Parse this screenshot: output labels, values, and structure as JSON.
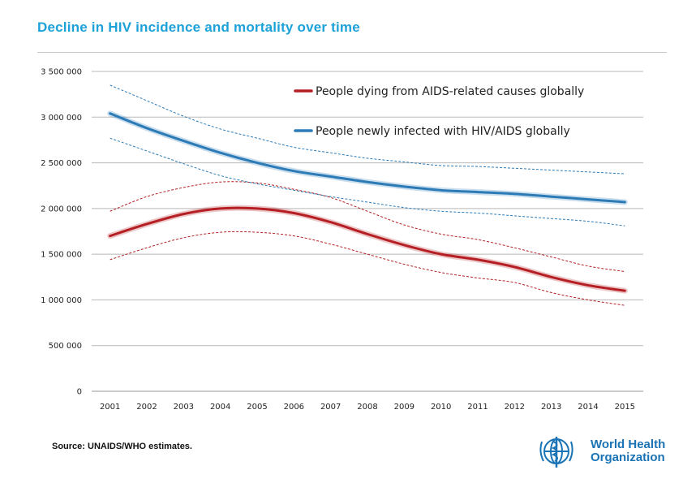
{
  "title_parts": {
    "pre": "Decline in ",
    "bold": "HIV",
    "post": " incidence and mortality over time"
  },
  "source": "Source: UNAIDS/WHO estimates.",
  "logo": {
    "line1": "World Health",
    "line2": "Organization",
    "icon": "who-emblem-icon"
  },
  "colors": {
    "deaths": "#b51f24",
    "infections": "#2c7bb6",
    "title": "#1ca1d8"
  },
  "chart_data": {
    "type": "line",
    "x": [
      2001,
      2002,
      2003,
      2004,
      2005,
      2006,
      2007,
      2008,
      2009,
      2010,
      2011,
      2012,
      2013,
      2014,
      2015
    ],
    "ylim": [
      0,
      3500000
    ],
    "yticks": [
      0,
      500000,
      1000000,
      1500000,
      2000000,
      2500000,
      3000000,
      3500000
    ],
    "ytick_labels": [
      "0",
      "500 000",
      "1 000 000",
      "1 500 000",
      "2 000 000",
      "2 500 000",
      "3 000 000",
      "3 500 000"
    ],
    "grid": true,
    "legend_position": "top-right",
    "series": [
      {
        "name": "People dying from AIDS-related causes globally",
        "color": "#b51f24",
        "values": [
          1700000,
          1830000,
          1940000,
          2000000,
          2000000,
          1950000,
          1850000,
          1720000,
          1600000,
          1500000,
          1440000,
          1360000,
          1250000,
          1160000,
          1100000
        ],
        "lower": [
          1440000,
          1570000,
          1680000,
          1740000,
          1740000,
          1700000,
          1610000,
          1500000,
          1390000,
          1300000,
          1240000,
          1190000,
          1080000,
          1000000,
          940000
        ],
        "upper": [
          1970000,
          2130000,
          2230000,
          2290000,
          2280000,
          2210000,
          2120000,
          1970000,
          1820000,
          1720000,
          1660000,
          1570000,
          1470000,
          1370000,
          1310000
        ]
      },
      {
        "name": "People newly infected with HIV/AIDS globally",
        "color": "#2c7bb6",
        "values": [
          3040000,
          2880000,
          2740000,
          2610000,
          2500000,
          2410000,
          2350000,
          2290000,
          2240000,
          2200000,
          2180000,
          2160000,
          2130000,
          2100000,
          2070000
        ],
        "lower": [
          2770000,
          2630000,
          2490000,
          2360000,
          2270000,
          2200000,
          2130000,
          2070000,
          2010000,
          1970000,
          1950000,
          1920000,
          1890000,
          1860000,
          1810000
        ],
        "upper": [
          3350000,
          3180000,
          3010000,
          2870000,
          2770000,
          2670000,
          2610000,
          2550000,
          2510000,
          2470000,
          2460000,
          2440000,
          2420000,
          2400000,
          2380000
        ]
      }
    ]
  }
}
